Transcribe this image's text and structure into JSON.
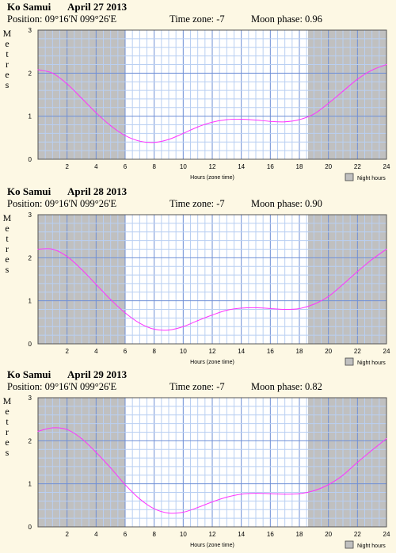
{
  "chart_data": [
    {
      "type": "line",
      "title": {
        "place": "Ko Samui",
        "date": "April 27 2013"
      },
      "info": {
        "position": "Position: 09°16'N 099°26'E",
        "timezone": "Time zone: -7",
        "moon": "Moon phase: 0.96"
      },
      "ylabel": "Metres",
      "xlabel": "Hours (zone time)",
      "legend": "Night hours",
      "xlim": [
        0,
        24
      ],
      "ylim": [
        0,
        3
      ],
      "x_ticks": [
        "2",
        "4",
        "6",
        "8",
        "10",
        "12",
        "14",
        "16",
        "18",
        "20",
        "22",
        "24"
      ],
      "y_ticks": [
        "0",
        "1",
        "2",
        "3"
      ],
      "night": [
        [
          0,
          6
        ],
        [
          18.6,
          24
        ]
      ],
      "series": [
        {
          "x": [
            0,
            1,
            2,
            3,
            4,
            5,
            6,
            7,
            8,
            9,
            10,
            11,
            12,
            13,
            14,
            15,
            16,
            17,
            18,
            19,
            20,
            21,
            22,
            23,
            24
          ],
          "values": [
            2.08,
            2.0,
            1.75,
            1.42,
            1.08,
            0.78,
            0.55,
            0.42,
            0.39,
            0.46,
            0.6,
            0.75,
            0.86,
            0.92,
            0.93,
            0.91,
            0.88,
            0.87,
            0.92,
            1.05,
            1.3,
            1.58,
            1.86,
            2.07,
            2.2
          ]
        }
      ]
    },
    {
      "type": "line",
      "title": {
        "place": "Ko Samui",
        "date": "April 28 2013"
      },
      "info": {
        "position": "Position: 09°16'N 099°26'E",
        "timezone": "Time zone: -7",
        "moon": "Moon phase: 0.90"
      },
      "ylabel": "Metres",
      "xlabel": "Hours (zone time)",
      "legend": "Night hours",
      "xlim": [
        0,
        24
      ],
      "ylim": [
        0,
        3
      ],
      "x_ticks": [
        "2",
        "4",
        "6",
        "8",
        "10",
        "12",
        "14",
        "16",
        "18",
        "20",
        "22",
        "24"
      ],
      "y_ticks": [
        "0",
        "1",
        "2",
        "3"
      ],
      "night": [
        [
          0,
          6
        ],
        [
          18.6,
          24
        ]
      ],
      "series": [
        {
          "x": [
            0,
            1,
            2,
            3,
            4,
            5,
            6,
            7,
            8,
            9,
            10,
            11,
            12,
            13,
            14,
            15,
            16,
            17,
            18,
            19,
            20,
            21,
            22,
            23,
            24
          ],
          "values": [
            2.2,
            2.2,
            2.03,
            1.73,
            1.38,
            1.03,
            0.72,
            0.48,
            0.34,
            0.32,
            0.4,
            0.54,
            0.67,
            0.78,
            0.83,
            0.84,
            0.82,
            0.8,
            0.82,
            0.92,
            1.1,
            1.38,
            1.68,
            1.96,
            2.2
          ]
        }
      ]
    },
    {
      "type": "line",
      "title": {
        "place": "Ko Samui",
        "date": "April 29 2013"
      },
      "info": {
        "position": "Position: 09°16'N 099°26'E",
        "timezone": "Time zone: -7",
        "moon": "Moon phase: 0.82"
      },
      "ylabel": "Metres",
      "xlabel": "Hours (zone time)",
      "legend": "Night hours",
      "xlim": [
        0,
        24
      ],
      "ylim": [
        0,
        3
      ],
      "x_ticks": [
        "2",
        "4",
        "6",
        "8",
        "10",
        "12",
        "14",
        "16",
        "18",
        "20",
        "22",
        "24"
      ],
      "y_ticks": [
        "0",
        "1",
        "2",
        "3"
      ],
      "night": [
        [
          0,
          6
        ],
        [
          18.6,
          24
        ]
      ],
      "series": [
        {
          "x": [
            0,
            1,
            2,
            3,
            4,
            5,
            6,
            7,
            8,
            9,
            10,
            11,
            12,
            13,
            14,
            15,
            16,
            17,
            18,
            19,
            20,
            21,
            22,
            23,
            24
          ],
          "values": [
            2.22,
            2.3,
            2.26,
            2.05,
            1.73,
            1.37,
            0.98,
            0.65,
            0.42,
            0.32,
            0.34,
            0.45,
            0.58,
            0.69,
            0.76,
            0.78,
            0.77,
            0.76,
            0.77,
            0.84,
            0.98,
            1.2,
            1.5,
            1.78,
            2.05
          ]
        }
      ]
    }
  ]
}
